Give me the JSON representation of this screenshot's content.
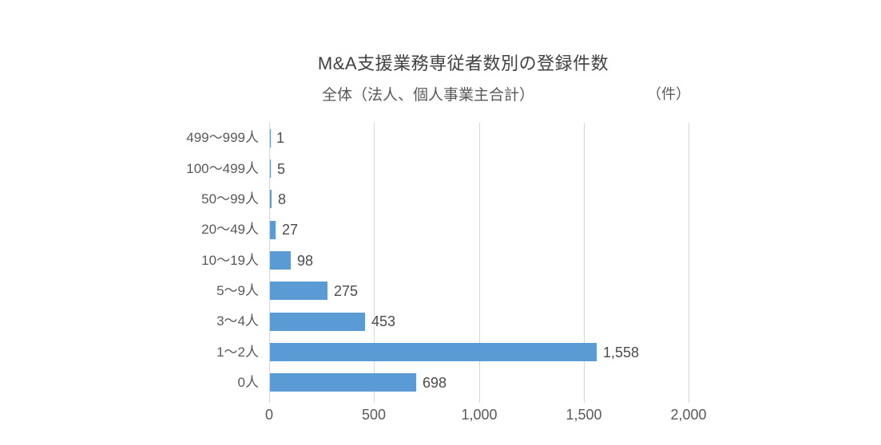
{
  "chart_data": {
    "type": "bar",
    "orientation": "horizontal",
    "title": "M&A支援業務専従者数別の登録件数",
    "subtitle": "全体（法人、個人事業主合計）",
    "unit_label": "（件）",
    "categories": [
      "499〜999人",
      "100〜499人",
      "50〜99人",
      "20〜49人",
      "10〜19人",
      "5〜9人",
      "3〜4人",
      "1〜2人",
      "0人"
    ],
    "values": [
      1,
      5,
      8,
      27,
      98,
      275,
      453,
      1558,
      698
    ],
    "value_labels": [
      "1",
      "5",
      "8",
      "27",
      "98",
      "275",
      "453",
      "1,558",
      "698"
    ],
    "xlim": [
      0,
      2000
    ],
    "x_ticks": [
      0,
      500,
      1000,
      1500,
      2000
    ],
    "x_tick_labels": [
      "0",
      "500",
      "1,000",
      "1,500",
      "2,000"
    ],
    "grid": true,
    "legend": "none",
    "bar_color": "#5b9bd5",
    "gridline_color": "#d6d6d6"
  }
}
